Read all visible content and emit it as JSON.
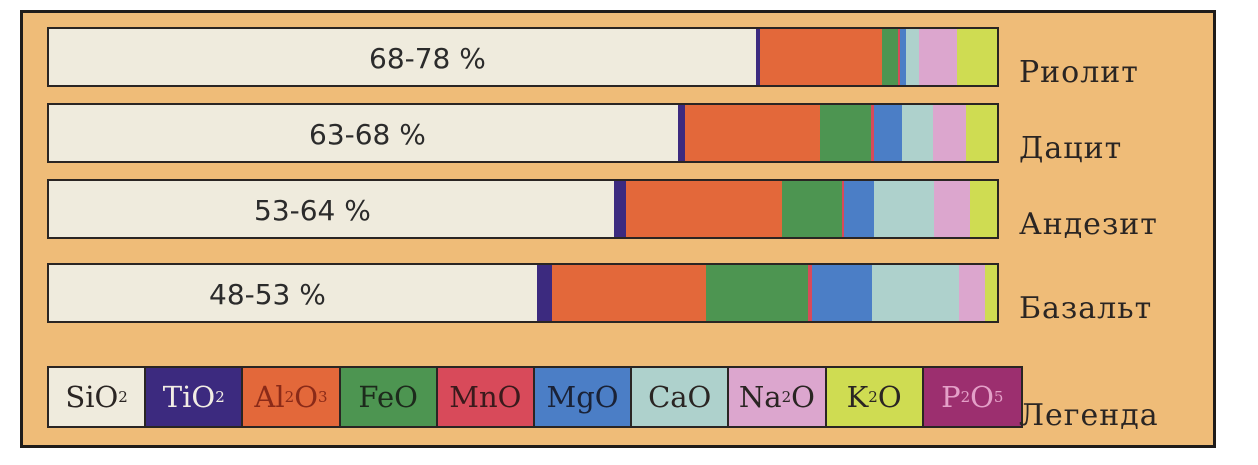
{
  "chart_data": {
    "type": "bar",
    "stacked": true,
    "orientation": "horizontal",
    "categories": [
      "Риолит",
      "Дацит",
      "Андезит",
      "Базальт"
    ],
    "percent_labels": [
      "68-78 %",
      "63-68 %",
      "53-64 %",
      "48-53 %"
    ],
    "series": [
      {
        "name": "SiO2",
        "color": "#efebdd",
        "values": [
          73.5,
          66.5,
          59.7,
          51.6
        ]
      },
      {
        "name": "TiO2",
        "color": "#3c2a7f",
        "values": [
          0.4,
          0.8,
          1.2,
          1.6
        ]
      },
      {
        "name": "Al2O3",
        "color": "#e3683a",
        "values": [
          12.7,
          14.3,
          16.5,
          16.3
        ]
      },
      {
        "name": "FeO",
        "color": "#4d9551",
        "values": [
          1.6,
          5.4,
          6.3,
          10.8
        ]
      },
      {
        "name": "MnO",
        "color": "#d84a5a",
        "values": [
          0.2,
          0.3,
          0.3,
          0.4
        ]
      },
      {
        "name": "MgO",
        "color": "#4b7ec6",
        "values": [
          0.6,
          2.9,
          3.1,
          6.4
        ]
      },
      {
        "name": "CaO",
        "color": "#aed1cc",
        "values": [
          1.4,
          3.3,
          6.4,
          9.2
        ]
      },
      {
        "name": "Na2O",
        "color": "#dca6ce",
        "values": [
          3.9,
          3.5,
          3.8,
          2.7
        ]
      },
      {
        "name": "K2O",
        "color": "#cfdc52",
        "values": [
          4.2,
          3.3,
          2.8,
          1.3
        ]
      },
      {
        "name": "P2O5",
        "color": "#9c2f6f",
        "values": [
          0.0,
          0.0,
          0.0,
          0.0
        ]
      }
    ],
    "legend_title": "Легенда",
    "xlim": [
      0,
      100
    ]
  },
  "legend_items": [
    {
      "base": "SiO",
      "sub": "2",
      "rest": "",
      "sub2": "",
      "bg": "#efebdd",
      "fg": "#2a2523"
    },
    {
      "base": "TiO",
      "sub": "2",
      "rest": "",
      "sub2": "",
      "bg": "#3c2a7f",
      "fg": "#f2ede4"
    },
    {
      "base": "Al",
      "sub": "2",
      "rest": "O",
      "sub2": "3",
      "bg": "#e3683a",
      "fg": "#8a2a18"
    },
    {
      "base": "FeO",
      "sub": "",
      "rest": "",
      "sub2": "",
      "bg": "#4d9551",
      "fg": "#1d2a1c"
    },
    {
      "base": "MnO",
      "sub": "",
      "rest": "",
      "sub2": "",
      "bg": "#d84a5a",
      "fg": "#3a1a1c"
    },
    {
      "base": "MgO",
      "sub": "",
      "rest": "",
      "sub2": "",
      "bg": "#4b7ec6",
      "fg": "#1a2236"
    },
    {
      "base": "CaO",
      "sub": "",
      "rest": "",
      "sub2": "",
      "bg": "#aed1cc",
      "fg": "#2a2523"
    },
    {
      "base": "Na",
      "sub": "2",
      "rest": "O",
      "sub2": "",
      "bg": "#dca6ce",
      "fg": "#2a2523"
    },
    {
      "base": "K",
      "sub": "2",
      "rest": "O",
      "sub2": "",
      "bg": "#cfdc52",
      "fg": "#2a2523"
    },
    {
      "base": "P",
      "sub": "2",
      "rest": "O",
      "sub2": "5",
      "bg": "#9c2f6f",
      "fg": "#e4a0c8"
    }
  ]
}
